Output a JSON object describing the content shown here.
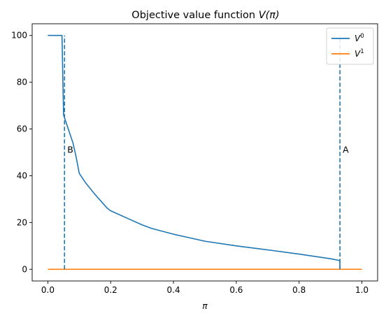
{
  "chart_data": {
    "type": "line",
    "title": "Objective value function V(π)",
    "xlabel": "π",
    "ylabel": "",
    "xlim": [
      -0.05,
      1.05
    ],
    "ylim": [
      -5,
      105
    ],
    "xticks": [
      0.0,
      0.2,
      0.4,
      0.6,
      0.8,
      1.0
    ],
    "xtick_labels": [
      "0.0",
      "0.2",
      "0.4",
      "0.6",
      "0.8",
      "1.0"
    ],
    "yticks": [
      0,
      20,
      40,
      60,
      80,
      100
    ],
    "ytick_labels": [
      "0",
      "20",
      "40",
      "60",
      "80",
      "100"
    ],
    "grid": false,
    "legend_position": "top-right",
    "series": [
      {
        "name": "V⁰",
        "label_base": "V",
        "label_sup": "0",
        "color": "#1f77b4",
        "x": [
          0.0,
          0.045,
          0.05,
          0.055,
          0.06,
          0.07,
          0.08,
          0.09,
          0.1,
          0.12,
          0.15,
          0.19,
          0.2,
          0.25,
          0.3,
          0.33,
          0.4,
          0.5,
          0.6,
          0.7,
          0.8,
          0.9,
          0.93,
          0.93
        ],
        "y": [
          100,
          100,
          66,
          64,
          62,
          58,
          54,
          48,
          41,
          37,
          32,
          26,
          25,
          22,
          19,
          17.5,
          15,
          12,
          10,
          8.3,
          6.5,
          4.5,
          3.7,
          0
        ]
      },
      {
        "name": "V¹",
        "label_base": "V",
        "label_sup": "1",
        "color": "#ff7f0e",
        "x": [
          0.0,
          1.0
        ],
        "y": [
          0,
          0
        ]
      }
    ],
    "vlines": [
      {
        "x": 0.053,
        "ymin": 0,
        "ymax": 100,
        "label": "B",
        "label_y": 51,
        "color": "#1f77b4"
      },
      {
        "x": 0.93,
        "ymin": 0,
        "ymax": 100,
        "label": "A",
        "label_y": 51,
        "color": "#1f77b4"
      }
    ]
  }
}
